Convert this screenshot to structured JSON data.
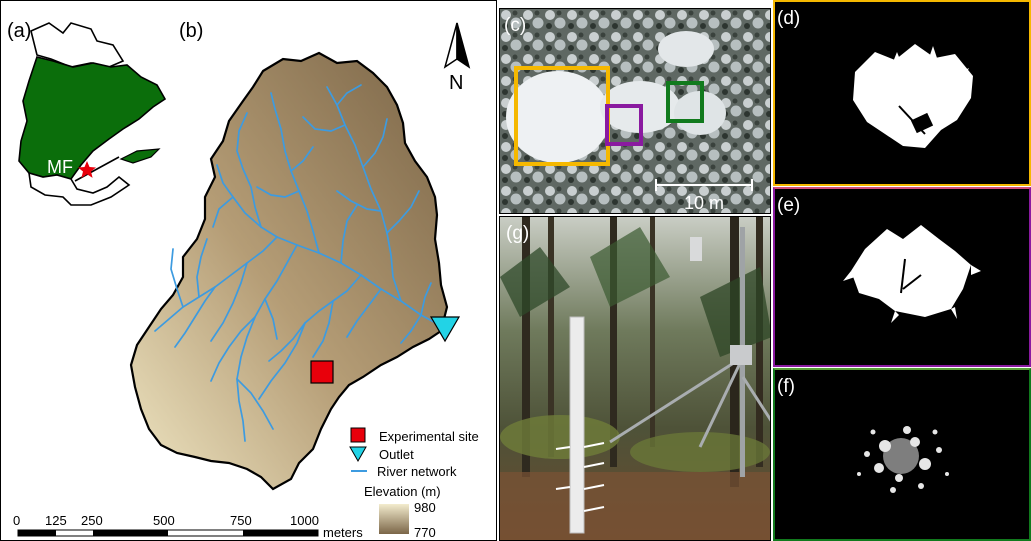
{
  "map_panel": {
    "label_a": "(a)",
    "label_b": "(b)",
    "inset_marker_label": "MF",
    "north_label": "N",
    "scale": {
      "ticks": [
        "0",
        "125",
        "250",
        "500",
        "750",
        "1000"
      ],
      "unit": "meters"
    },
    "legend": {
      "experimental_site": "Experimental site",
      "outlet": "Outlet",
      "river_network": "River network",
      "elevation_title": "Elevation (m)",
      "elevation_max": "980",
      "elevation_min": "770"
    },
    "colors": {
      "province_fill": "#0b6e0b",
      "site_marker": "#e8000b",
      "outlet_marker": "#22d3e6",
      "river": "#3d9be0",
      "elev_high": "#f1ebcb",
      "elev_low": "#7b6648"
    }
  },
  "photo_panels": {
    "label_c": "(c)",
    "scale_text": "10 m",
    "label_g": "(g)",
    "label_d": "(d)",
    "label_e": "(e)",
    "label_f": "(f)",
    "box_colors": {
      "d": "#f5b800",
      "e": "#8a1aa0",
      "f": "#117a1d"
    }
  }
}
